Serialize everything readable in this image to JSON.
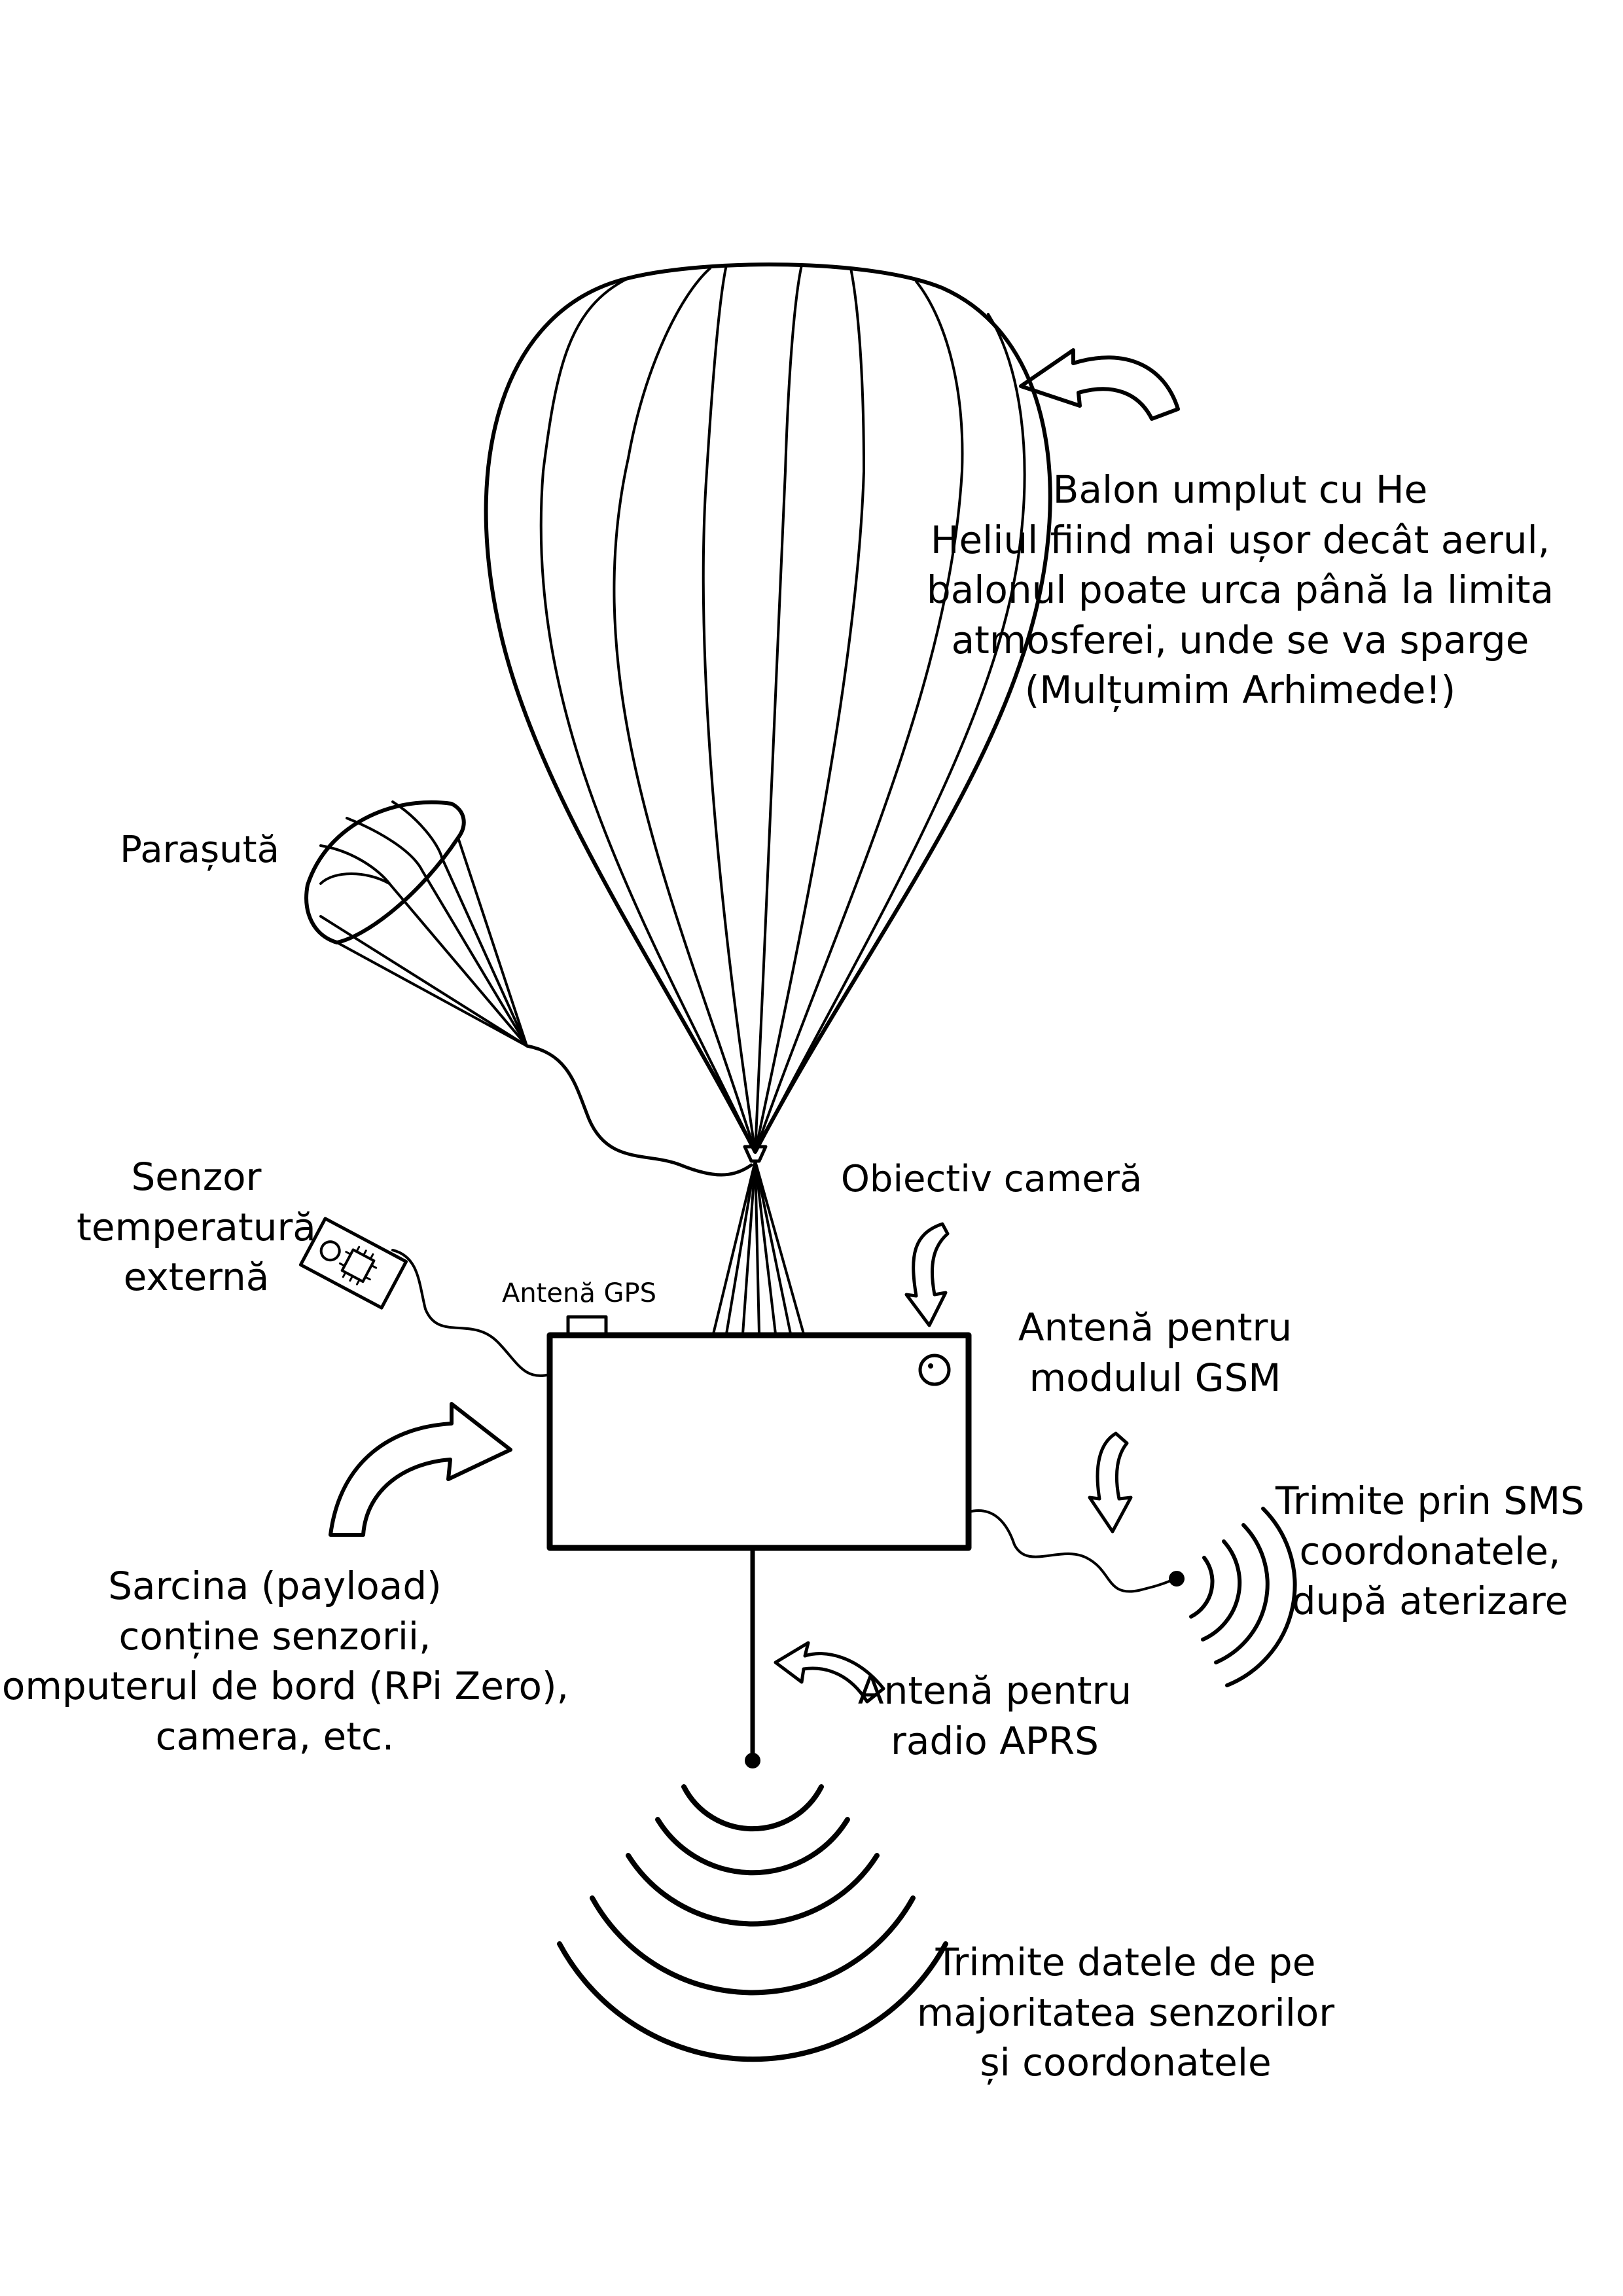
{
  "colors": {
    "ink": "#000000",
    "background": "#ffffff"
  },
  "labels": {
    "balloon": [
      "Balon umplut cu He",
      "Heliul fiind mai ușor decât aerul,",
      "balonul poate urca până la limita",
      "atmosferei, unde se va sparge",
      "(Mulțumim Arhimede!)"
    ],
    "parachute": "Parașută",
    "temp_sensor": [
      "Senzor",
      "temperatură",
      "externă"
    ],
    "gps_antenna": "Antenă GPS",
    "camera_lens": "Obiectiv cameră",
    "gsm_antenna": [
      "Antenă pentru",
      "modulul GSM"
    ],
    "sms": [
      "Trimite prin SMS",
      "coordonatele,",
      "după aterizare"
    ],
    "payload": [
      "Sarcina (payload)",
      "conține senzorii,",
      "computerul de bord (RPi Zero),",
      "camera, etc."
    ],
    "aprs_antenna": [
      "Antenă pentru",
      "radio APRS"
    ],
    "aprs_data": [
      "Trimite datele de pe",
      "majoritatea senzorilor",
      "și coordonatele"
    ]
  },
  "icons": [
    "curved-arrow-icon",
    "down-arrow-icon",
    "radio-waves-icon",
    "chip-icon",
    "lens-icon"
  ]
}
